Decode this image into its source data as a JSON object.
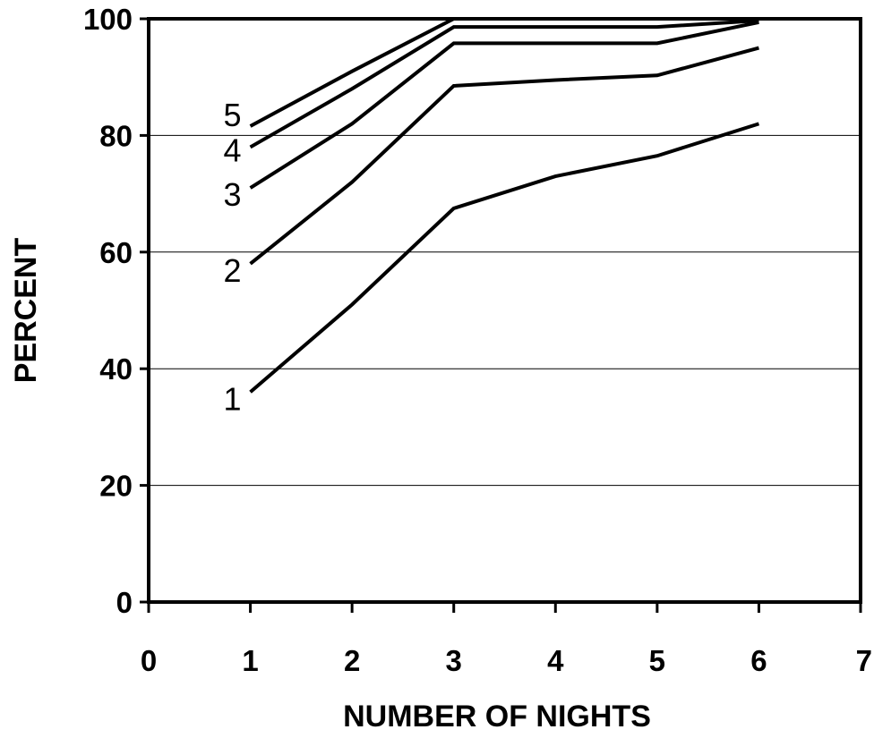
{
  "chart_data": {
    "type": "line",
    "xlabel": "NUMBER OF NIGHTS",
    "ylabel": "PERCENT",
    "xlim": [
      0,
      7
    ],
    "ylim": [
      0,
      100
    ],
    "x_ticks": [
      "0",
      "1",
      "2",
      "3",
      "4",
      "5",
      "6",
      "7"
    ],
    "y_ticks": [
      "0",
      "20",
      "40",
      "60",
      "80",
      "100"
    ],
    "grid": "horizontal",
    "x": [
      1,
      2,
      3,
      4,
      5,
      6
    ],
    "series": [
      {
        "name": "1",
        "values": [
          36,
          51,
          67.5,
          73,
          76.5,
          82
        ]
      },
      {
        "name": "2",
        "values": [
          58,
          72,
          88.5,
          89.5,
          90.3,
          95
        ]
      },
      {
        "name": "3",
        "values": [
          71,
          82,
          95.8,
          95.8,
          95.8,
          99.4
        ]
      },
      {
        "name": "4",
        "values": [
          78,
          88,
          98.6,
          98.6,
          98.6,
          99.7
        ]
      },
      {
        "name": "5",
        "values": [
          81.6,
          91,
          100,
          100,
          100,
          100
        ]
      }
    ]
  }
}
